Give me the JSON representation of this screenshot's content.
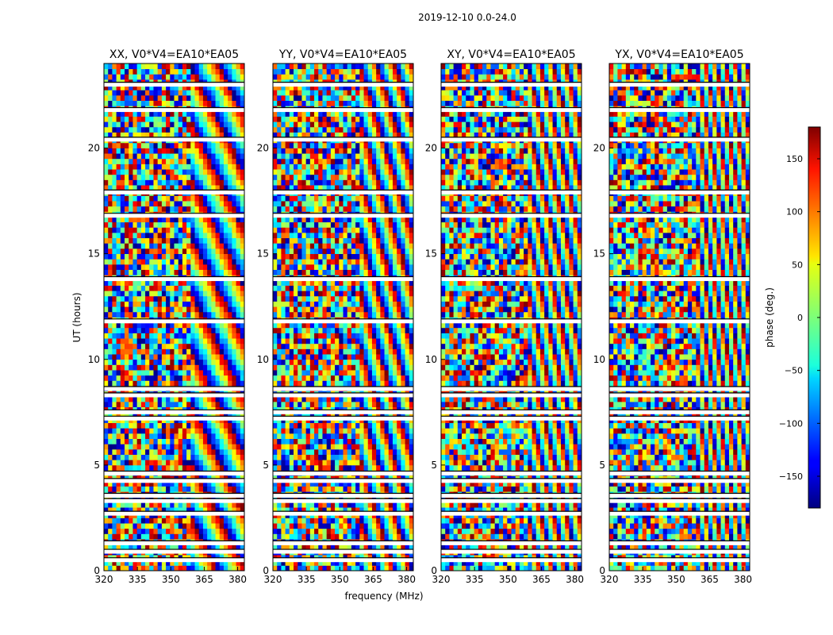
{
  "chart_data": {
    "type": "heatmap",
    "suptitle": "2019-12-10 0.0-24.0",
    "xlabel": "frequency (MHz)",
    "ylabel": "UT (hours)",
    "xlim": [
      320,
      383
    ],
    "ylim": [
      0,
      24
    ],
    "x_ticks": [
      320,
      335,
      350,
      365,
      380
    ],
    "y_ticks": [
      0,
      5,
      10,
      15,
      20
    ],
    "colormap": "jet",
    "grid": false,
    "colorbar": {
      "label": "phase (deg.)",
      "range": [
        -180,
        180
      ],
      "ticks": [
        -150,
        -100,
        -50,
        0,
        50,
        100,
        150
      ],
      "tick_labels": [
        "−150",
        "−100",
        "−50",
        "0",
        "50",
        "100",
        "150"
      ]
    },
    "panels": [
      {
        "title": "XX, V0*V4=EA10*EA05"
      },
      {
        "title": "YY, V0*V4=EA10*EA05"
      },
      {
        "title": "XY, V0*V4=EA10*EA05"
      },
      {
        "title": "YX, V0*V4=EA10*EA05"
      }
    ],
    "flagged_ut_hours": [
      0.5,
      0.9,
      1.3,
      2.7,
      3.3,
      3.55,
      4.25,
      4.6,
      7.2,
      7.5,
      8.3,
      8.6,
      11.8,
      13.8,
      16.8,
      17.9,
      20.4,
      21.8,
      23.0
    ]
  }
}
